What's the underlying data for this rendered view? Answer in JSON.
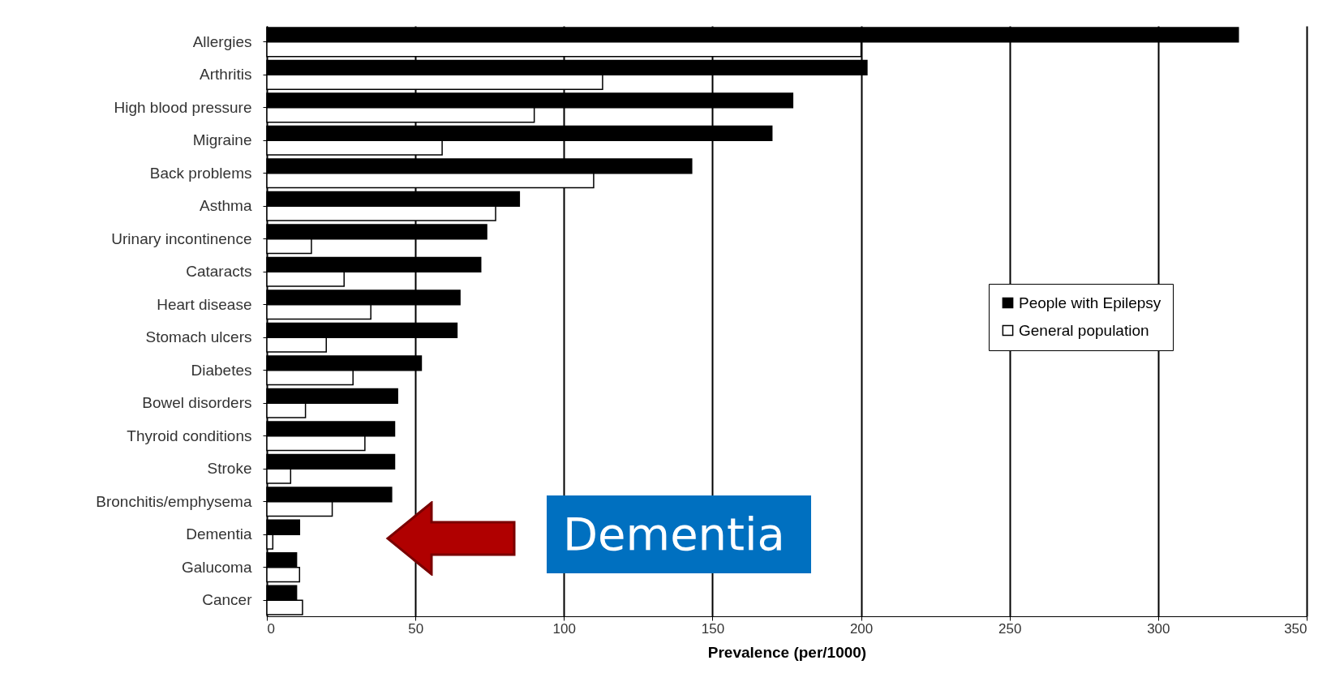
{
  "chart_data": {
    "type": "bar",
    "orientation": "horizontal",
    "xlabel": "Prevalence (per/1000)",
    "categories": [
      "Allergies",
      "Arthritis",
      "High blood pressure",
      "Migraine",
      "Back  problems",
      "Asthma",
      "Urinary incontinence",
      "Cataracts",
      "Heart disease",
      "Stomach ulcers",
      "Diabetes",
      "Bowel disorders",
      "Thyroid conditions",
      "Stroke",
      "Bronchitis/emphysema",
      "Dementia",
      "Galucoma",
      "Cancer"
    ],
    "series": [
      {
        "name": "People with Epilepsy",
        "color": "#000000",
        "values": [
          327,
          202,
          177,
          170,
          143,
          85,
          74,
          72,
          65,
          64,
          52,
          44,
          43,
          43,
          42,
          11,
          10,
          10
        ]
      },
      {
        "name": "General population",
        "color": "#ffffff",
        "values": [
          200,
          113,
          90,
          59,
          110,
          77,
          15,
          26,
          35,
          20,
          29,
          13,
          33,
          8,
          22,
          2,
          11,
          12
        ]
      }
    ],
    "xlim": [
      0,
      350
    ],
    "xticks": [
      0,
      50,
      100,
      150,
      200,
      250,
      300,
      350
    ],
    "grid": "x",
    "legend": "right",
    "annotations": [
      "Dementia"
    ]
  }
}
